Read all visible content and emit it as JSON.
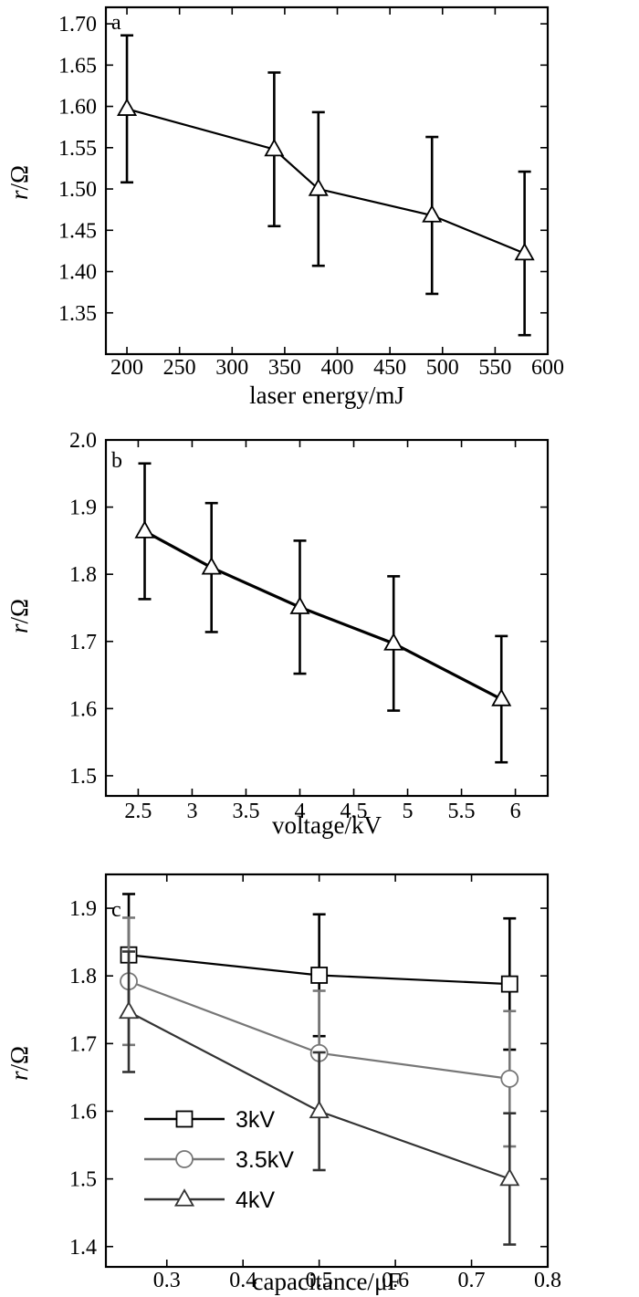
{
  "chart_data": [
    {
      "type": "line",
      "panel": "a",
      "xlabel": "laser energy/mJ",
      "ylabel_italic": "r",
      "ylabel_unit": "/Ω",
      "xlim": [
        180,
        600
      ],
      "ylim": [
        1.3,
        1.72
      ],
      "xticks": [
        200,
        250,
        300,
        350,
        400,
        450,
        500,
        550,
        600
      ],
      "yticks": [
        1.35,
        1.4,
        1.45,
        1.5,
        1.55,
        1.6,
        1.65,
        1.7
      ],
      "ytick_decimals": 2,
      "series": [
        {
          "marker": "triangle",
          "color": "#000000",
          "x": [
            200,
            340,
            382,
            490,
            578
          ],
          "y": [
            1.597,
            1.548,
            1.5,
            1.468,
            1.422
          ],
          "err": [
            0.089,
            0.093,
            0.093,
            0.095,
            0.099
          ]
        }
      ]
    },
    {
      "type": "line",
      "panel": "b",
      "xlabel": "voltage/kV",
      "ylabel_italic": "r",
      "ylabel_unit": "/Ω",
      "xlim": [
        2.2,
        6.3
      ],
      "ylim": [
        1.47,
        2.0
      ],
      "xticks": [
        2.5,
        3.0,
        3.5,
        4.0,
        4.5,
        5.0,
        5.5,
        6.0
      ],
      "yticks": [
        1.5,
        1.6,
        1.7,
        1.8,
        1.9,
        2.0
      ],
      "ytick_decimals": 1,
      "series": [
        {
          "marker": "triangle",
          "color": "#000000",
          "x": [
            2.56,
            3.18,
            4.0,
            4.87,
            5.87
          ],
          "y": [
            1.864,
            1.81,
            1.751,
            1.697,
            1.614
          ],
          "err": [
            0.101,
            0.096,
            0.099,
            0.1,
            0.094
          ]
        }
      ]
    },
    {
      "type": "line",
      "panel": "c",
      "xlabel": "capacitance/μF",
      "ylabel_italic": "r",
      "ylabel_unit": "/Ω",
      "xlim": [
        0.22,
        0.8
      ],
      "ylim": [
        1.37,
        1.95
      ],
      "xticks": [
        0.3,
        0.4,
        0.5,
        0.6,
        0.7,
        0.8
      ],
      "yticks": [
        1.4,
        1.5,
        1.6,
        1.7,
        1.8,
        1.9
      ],
      "ytick_decimals": 1,
      "legend_position": "bottom-left",
      "series": [
        {
          "name": "3kV",
          "marker": "square",
          "color": "#000000",
          "x": [
            0.25,
            0.5,
            0.75
          ],
          "y": [
            1.831,
            1.801,
            1.788
          ],
          "err": [
            0.09,
            0.09,
            0.097
          ]
        },
        {
          "name": "3.5kV",
          "marker": "circle",
          "color": "#777777",
          "x": [
            0.25,
            0.5,
            0.75
          ],
          "y": [
            1.792,
            1.686,
            1.648
          ],
          "err": [
            0.094,
            0.092,
            0.1
          ]
        },
        {
          "name": "4kV",
          "marker": "triangle",
          "color": "#333333",
          "x": [
            0.25,
            0.5,
            0.75
          ],
          "y": [
            1.747,
            1.6,
            1.5
          ],
          "err": [
            0.089,
            0.087,
            0.097
          ]
        }
      ]
    }
  ]
}
